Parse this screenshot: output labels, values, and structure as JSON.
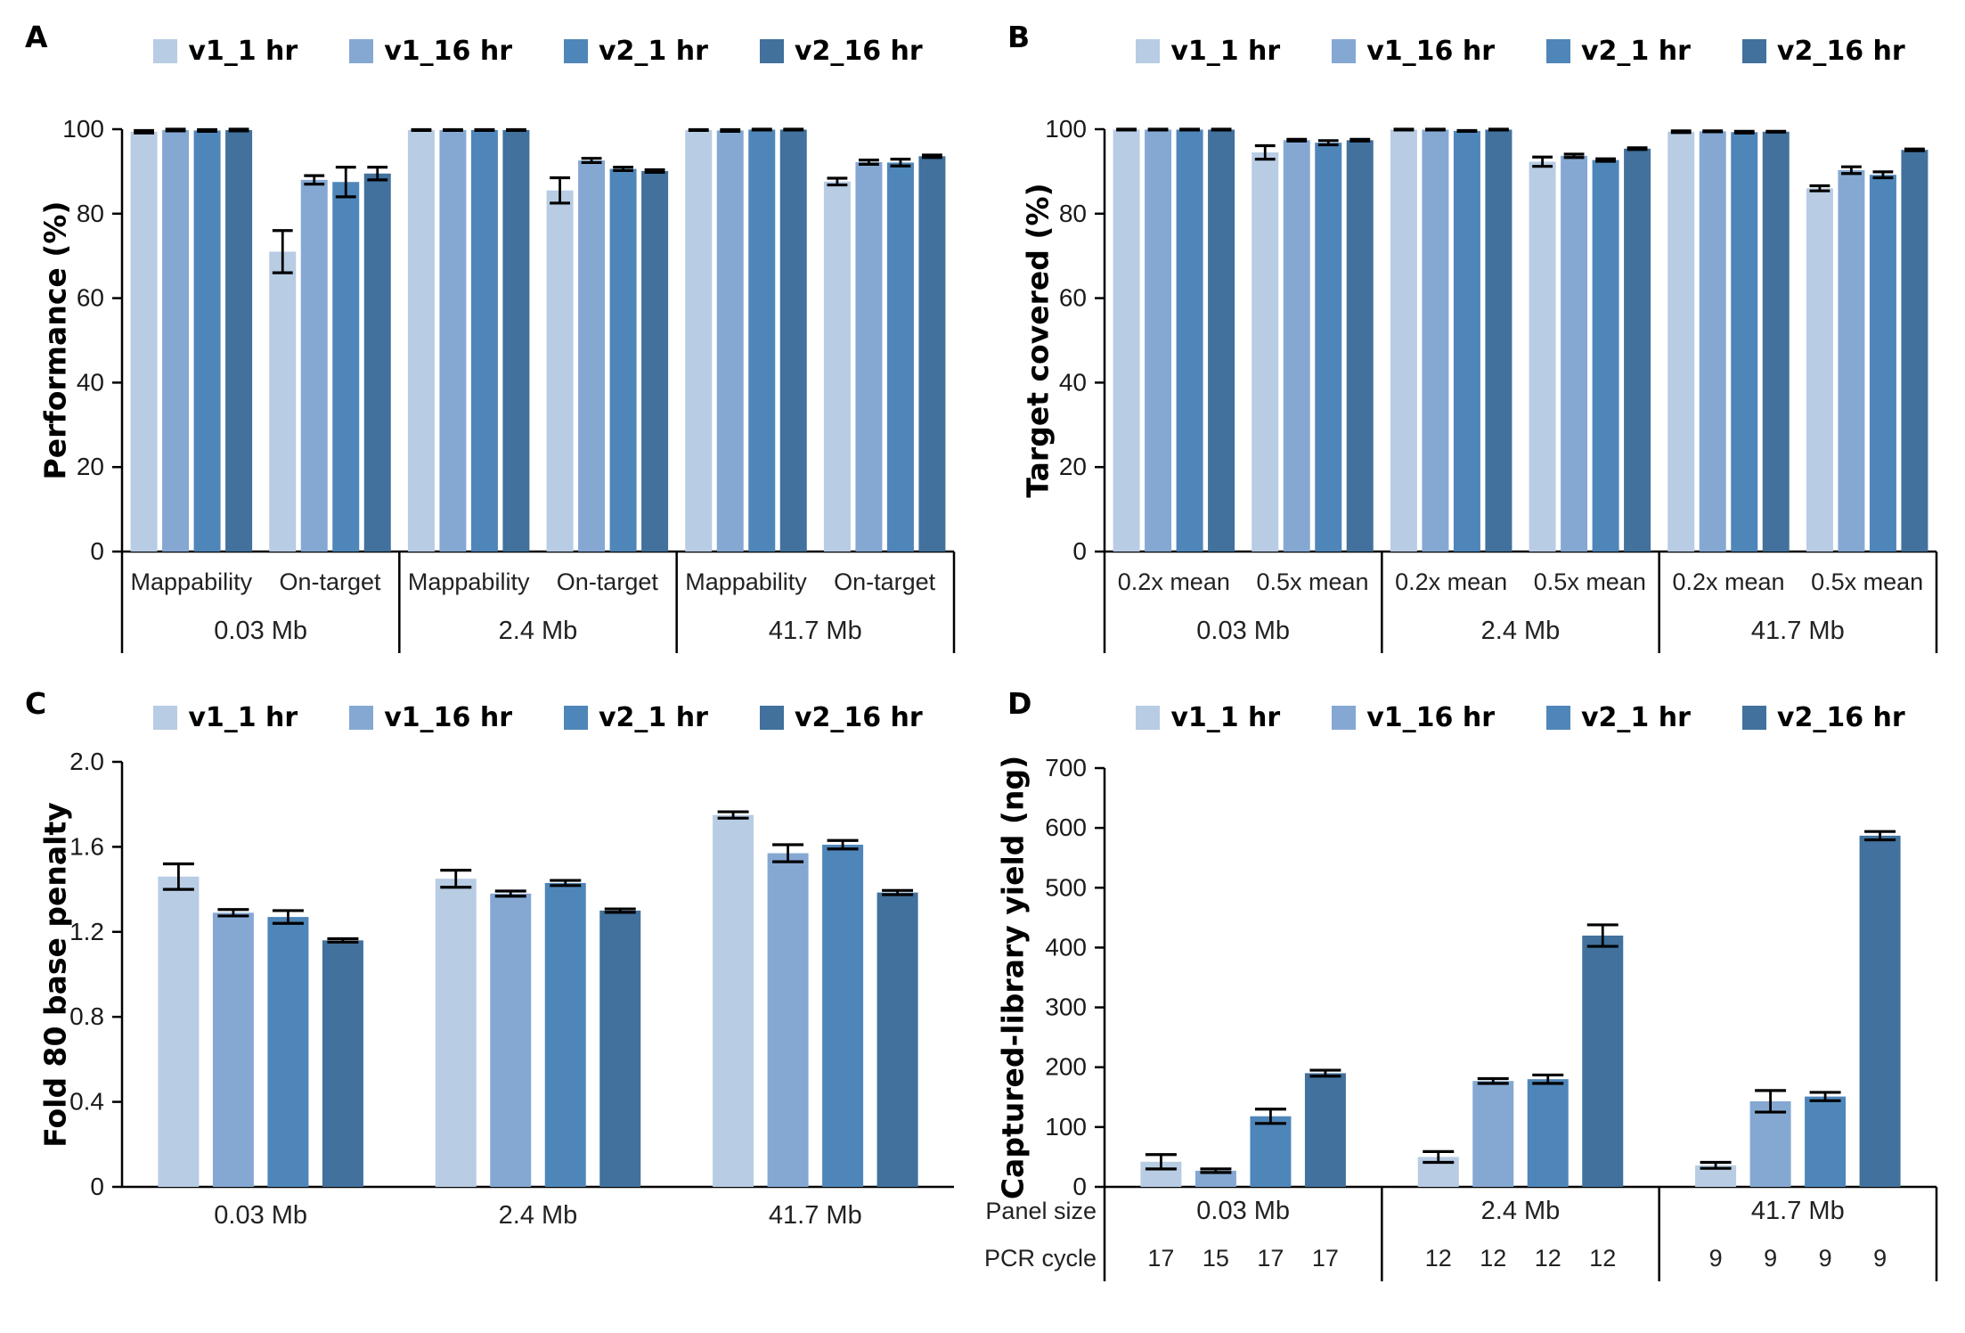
{
  "chart_data": {
    "type": "bar",
    "legend": [
      {
        "name": "v1_1 hr",
        "color": "#b8cce4"
      },
      {
        "name": "v1_16 hr",
        "color": "#85a8d3"
      },
      {
        "name": "v2_1 hr",
        "color": "#4f86b9"
      },
      {
        "name": "v2_16 hr",
        "color": "#41719c"
      }
    ],
    "legend_position": "top",
    "grid": false,
    "panels": [
      {
        "id": "A",
        "letter": "A",
        "ylabel": "Performance (%)",
        "ylim": [
          0,
          100
        ],
        "ytick_labels": [
          "0",
          "20",
          "40",
          "60",
          "80",
          "100"
        ],
        "group_axis_note": "two sub-categories per panel-size group",
        "groups": [
          {
            "label": "0.03 Mb",
            "subgroups": [
              {
                "label": "Mappability",
                "values": [
                  99.4,
                  99.8,
                  99.7,
                  99.8
                ],
                "errors": [
                  0.3,
                  0.2,
                  0.2,
                  0.2
                ]
              },
              {
                "label": "On-target",
                "values": [
                  71.0,
                  88.0,
                  87.5,
                  89.5
                ],
                "errors": [
                  5.0,
                  1.0,
                  3.5,
                  1.5
                ]
              }
            ]
          },
          {
            "label": "2.4 Mb",
            "subgroups": [
              {
                "label": "Mappability",
                "values": [
                  99.8,
                  99.8,
                  99.8,
                  99.8
                ],
                "errors": [
                  0.1,
                  0.1,
                  0.1,
                  0.1
                ]
              },
              {
                "label": "On-target",
                "values": [
                  85.5,
                  92.6,
                  90.6,
                  90.1
                ],
                "errors": [
                  3.0,
                  0.5,
                  0.4,
                  0.3
                ]
              }
            ]
          },
          {
            "label": "41.7 Mb",
            "subgroups": [
              {
                "label": "Mappability",
                "values": [
                  99.8,
                  99.7,
                  99.9,
                  99.9
                ],
                "errors": [
                  0.1,
                  0.2,
                  0.1,
                  0.1
                ]
              },
              {
                "label": "On-target",
                "values": [
                  87.6,
                  92.2,
                  92.1,
                  93.6
                ],
                "errors": [
                  0.8,
                  0.5,
                  0.8,
                  0.3
                ]
              }
            ]
          }
        ]
      },
      {
        "id": "B",
        "letter": "B",
        "ylabel": "Target covered (%)",
        "ylim": [
          0,
          100
        ],
        "ytick_labels": [
          "0",
          "20",
          "40",
          "60",
          "80",
          "100"
        ],
        "groups": [
          {
            "label": "0.03 Mb",
            "subgroups": [
              {
                "label": "0.2x mean",
                "values": [
                  99.9,
                  99.9,
                  99.9,
                  99.9
                ],
                "errors": [
                  0.1,
                  0.1,
                  0.1,
                  0.1
                ]
              },
              {
                "label": "0.5x mean",
                "values": [
                  94.5,
                  97.4,
                  96.8,
                  97.4
                ],
                "errors": [
                  1.6,
                  0.2,
                  0.5,
                  0.2
                ]
              }
            ]
          },
          {
            "label": "2.4 Mb",
            "subgroups": [
              {
                "label": "0.2x mean",
                "values": [
                  99.9,
                  99.9,
                  99.6,
                  99.9
                ],
                "errors": [
                  0.1,
                  0.1,
                  0.1,
                  0.1
                ]
              },
              {
                "label": "0.5x mean",
                "values": [
                  92.3,
                  93.7,
                  92.7,
                  95.4
                ],
                "errors": [
                  1.1,
                  0.4,
                  0.3,
                  0.2
                ]
              }
            ]
          },
          {
            "label": "41.7 Mb",
            "subgroups": [
              {
                "label": "0.2x mean",
                "values": [
                  99.4,
                  99.5,
                  99.3,
                  99.4
                ],
                "errors": [
                  0.2,
                  0.1,
                  0.2,
                  0.1
                ]
              },
              {
                "label": "0.5x mean",
                "values": [
                  86.0,
                  90.3,
                  89.2,
                  95.1
                ],
                "errors": [
                  0.6,
                  0.8,
                  0.7,
                  0.2
                ]
              }
            ]
          }
        ]
      },
      {
        "id": "C",
        "letter": "C",
        "ylabel": "Fold 80 base penalty",
        "ylim": [
          0,
          2.0
        ],
        "ytick_labels": [
          "0",
          "0.4",
          "0.8",
          "1.2",
          "1.6",
          "2.0"
        ],
        "groups": [
          {
            "label": "0.03 Mb",
            "values": [
              1.46,
              1.29,
              1.27,
              1.16
            ],
            "errors": [
              0.06,
              0.015,
              0.03,
              0.008
            ]
          },
          {
            "label": "2.4 Mb",
            "values": [
              1.45,
              1.38,
              1.43,
              1.3
            ],
            "errors": [
              0.04,
              0.012,
              0.012,
              0.008
            ]
          },
          {
            "label": "41.7 Mb",
            "values": [
              1.75,
              1.57,
              1.61,
              1.385
            ],
            "errors": [
              0.015,
              0.04,
              0.02,
              0.01
            ]
          }
        ]
      },
      {
        "id": "D",
        "letter": "D",
        "ylabel": "Captured-library yield (ng)",
        "ylim": [
          0,
          700
        ],
        "ytick_labels": [
          "0",
          "100",
          "200",
          "300",
          "400",
          "500",
          "600",
          "700"
        ],
        "row_labels": {
          "panel_size": "Panel size",
          "pcr_cycle": "PCR cycle"
        },
        "groups": [
          {
            "label": "0.03 Mb",
            "values": [
              42,
              27,
              118,
              190
            ],
            "errors": [
              12,
              3,
              12,
              5
            ],
            "pcr_cycles": [
              "17",
              "15",
              "17",
              "17"
            ]
          },
          {
            "label": "2.4 Mb",
            "values": [
              50,
              177,
              180,
              420
            ],
            "errors": [
              9,
              4,
              7,
              18
            ],
            "pcr_cycles": [
              "12",
              "12",
              "12",
              "12"
            ]
          },
          {
            "label": "41.7 Mb",
            "values": [
              36,
              143,
              151,
              587
            ],
            "errors": [
              5,
              18,
              7,
              7
            ],
            "pcr_cycles": [
              "9",
              "9",
              "9",
              "9"
            ]
          }
        ]
      }
    ]
  }
}
